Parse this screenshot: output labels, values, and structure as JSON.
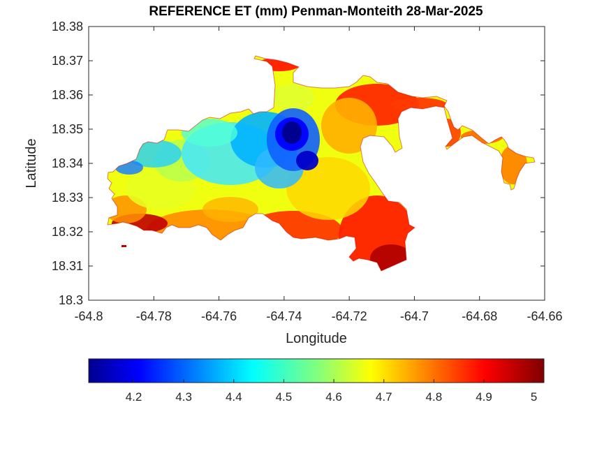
{
  "title": "REFERENCE ET (mm) Penman-Monteith 28-Mar-2025",
  "map": {
    "xlabel": "Longitude",
    "ylabel": "Latitude",
    "xlim": [
      -64.8,
      -64.66
    ],
    "ylim": [
      18.3,
      18.38
    ],
    "x_ticks": [
      "-64.8",
      "-64.78",
      "-64.76",
      "-64.74",
      "-64.72",
      "-64.7",
      "-64.68",
      "-64.66"
    ],
    "y_ticks": [
      "18.3",
      "18.31",
      "18.32",
      "18.33",
      "18.34",
      "18.35",
      "18.36",
      "18.37",
      "18.38"
    ],
    "colormap": "jet",
    "box": "on",
    "grid": "off"
  },
  "colorbar": {
    "location": "bottom",
    "range": [
      4.11,
      5.02
    ],
    "tick_labels": [
      "4.2",
      "4.3",
      "4.4",
      "4.5",
      "4.6",
      "4.7",
      "4.8",
      "4.9",
      "5"
    ]
  }
}
